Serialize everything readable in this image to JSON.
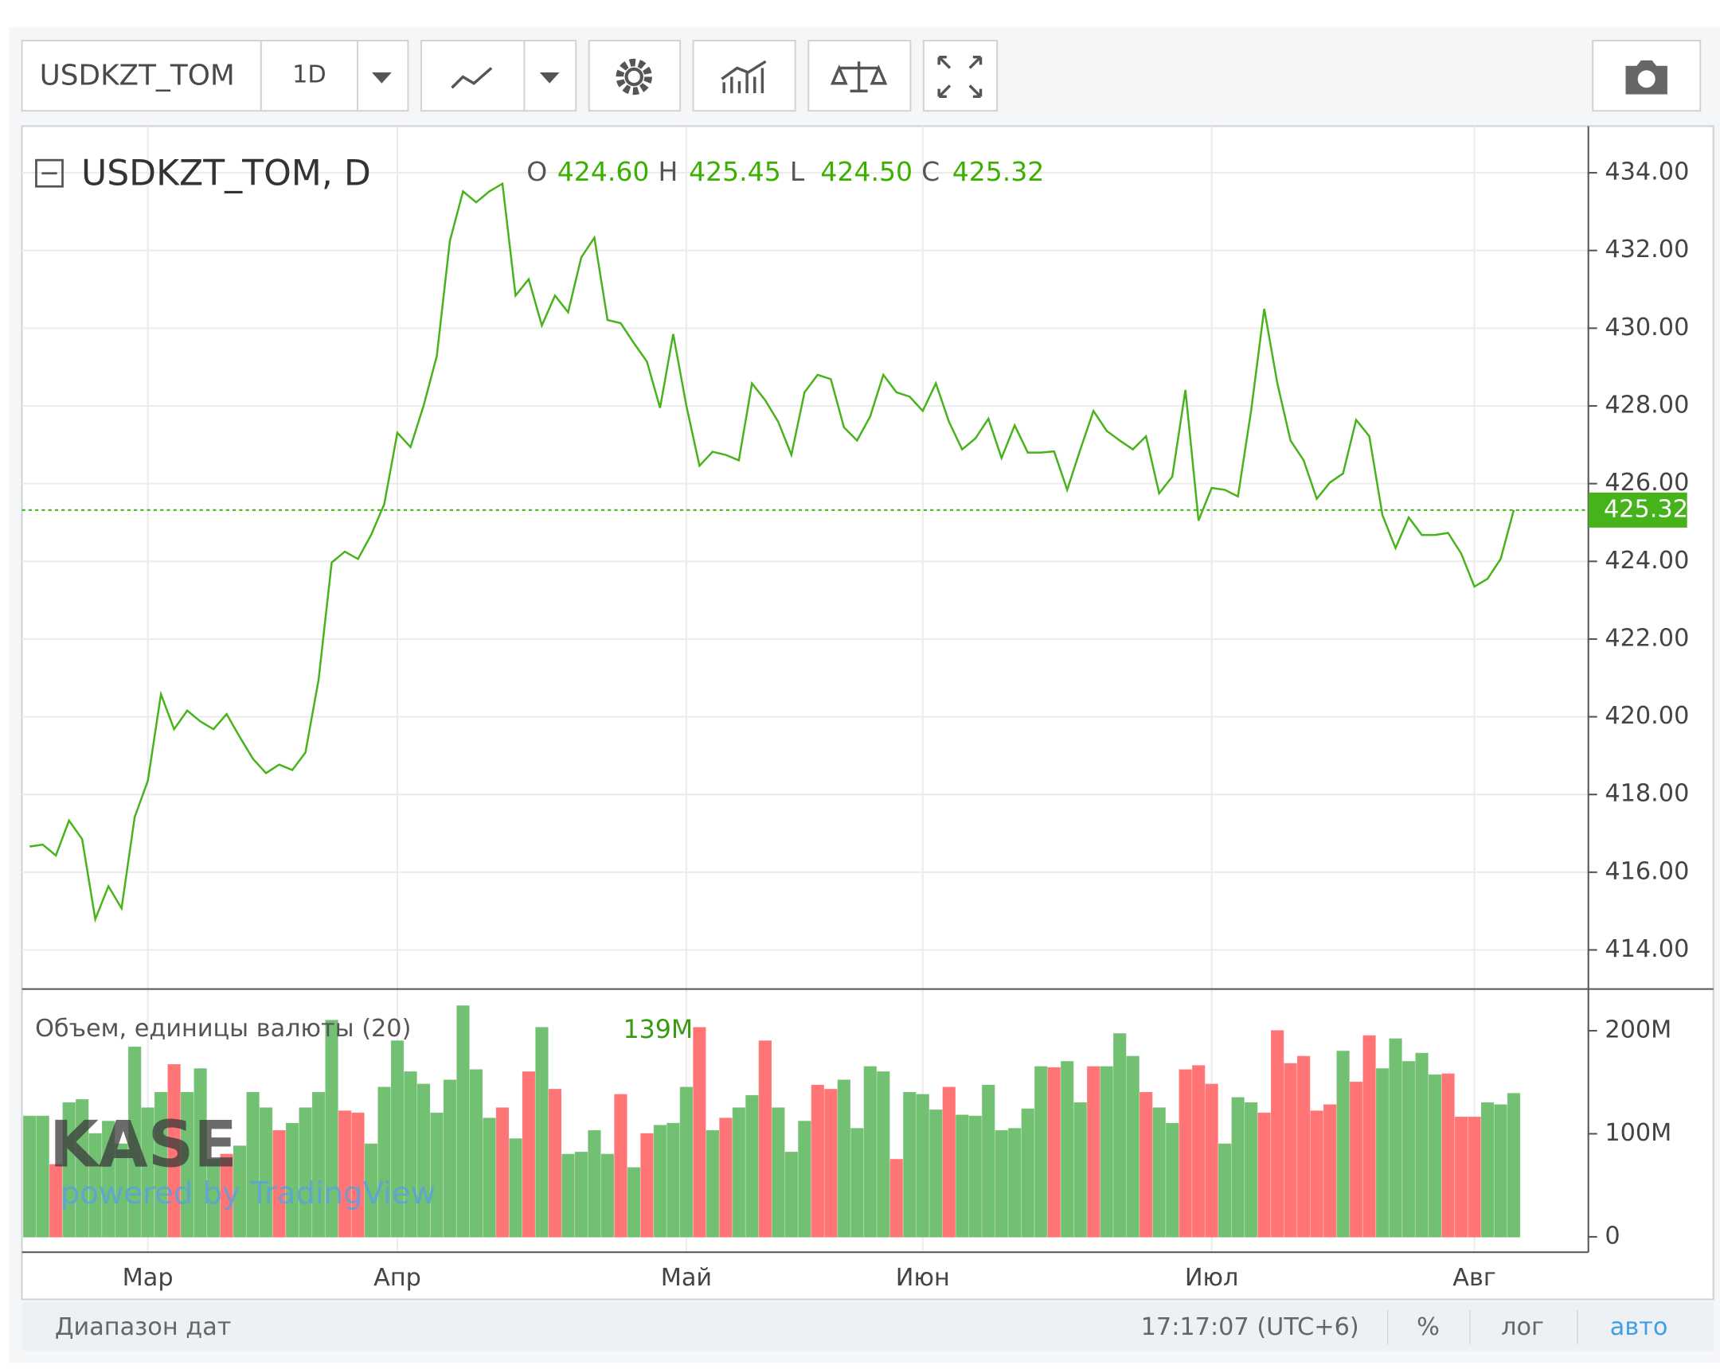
{
  "toolbar": {
    "symbol": "USDKZT_TOM",
    "interval": "1D"
  },
  "legend": {
    "title": "USDKZT_TOM, D",
    "fields": [
      "O",
      "H",
      "L",
      "C"
    ],
    "values": [
      "424.60",
      "425.45",
      "424.50",
      "425.32"
    ]
  },
  "watermark": {
    "logo": "KASE",
    "caption": "powered by TradingView"
  },
  "chart_data": [
    {
      "type": "line",
      "color": "#46b31a",
      "grid": true,
      "categories": [
        null,
        null,
        null,
        null,
        null,
        null,
        null,
        null,
        null,
        "Мар",
        null,
        null,
        null,
        null,
        null,
        null,
        null,
        null,
        null,
        null,
        null,
        null,
        null,
        null,
        null,
        null,
        null,
        null,
        "Апр",
        null,
        null,
        null,
        null,
        null,
        null,
        null,
        null,
        null,
        null,
        null,
        null,
        null,
        null,
        null,
        null,
        null,
        null,
        null,
        null,
        null,
        "Май",
        null,
        null,
        null,
        null,
        null,
        null,
        null,
        null,
        null,
        null,
        null,
        null,
        null,
        null,
        null,
        null,
        null,
        "Июн",
        null,
        null,
        null,
        null,
        null,
        null,
        null,
        null,
        null,
        null,
        null,
        null,
        null,
        null,
        null,
        null,
        null,
        null,
        null,
        null,
        null,
        "Июл",
        null,
        null,
        null,
        null,
        null,
        null,
        null,
        null,
        null,
        null,
        null,
        null,
        null,
        null,
        null,
        null,
        null,
        null,
        null,
        "Авг",
        null,
        null,
        null
      ],
      "values": [
        416.66,
        416.71,
        416.43,
        417.33,
        416.85,
        414.79,
        415.64,
        415.07,
        417.42,
        418.35,
        420.58,
        419.68,
        420.16,
        419.88,
        419.68,
        420.07,
        419.48,
        418.92,
        418.55,
        418.77,
        418.63,
        419.08,
        420.95,
        423.97,
        424.25,
        424.06,
        424.68,
        425.47,
        427.31,
        426.94,
        428.01,
        429.28,
        432.25,
        433.52,
        433.24,
        433.52,
        433.72,
        430.84,
        431.26,
        430.07,
        430.84,
        430.41,
        431.82,
        432.33,
        430.21,
        430.13,
        429.62,
        429.14,
        427.95,
        429.85,
        428.01,
        426.46,
        426.82,
        426.74,
        426.6,
        428.58,
        428.15,
        427.59,
        426.74,
        428.35,
        428.8,
        428.69,
        427.45,
        427.11,
        427.73,
        428.8,
        428.35,
        428.24,
        427.87,
        428.58,
        427.59,
        426.88,
        427.16,
        427.67,
        426.66,
        427.5,
        426.8,
        426.8,
        426.83,
        425.84,
        426.88,
        427.87,
        427.36,
        427.11,
        426.88,
        427.22,
        425.75,
        426.18,
        428.41,
        425.05,
        425.89,
        425.84,
        425.67,
        427.87,
        430.5,
        428.58,
        427.11,
        426.6,
        425.61,
        426.03,
        426.26,
        427.64,
        427.22,
        425.19,
        424.34,
        425.13,
        424.68,
        424.68,
        424.73,
        424.2,
        423.35,
        423.55,
        424.06,
        425.32
      ],
      "ylim": [
        413.05,
        435.2
      ],
      "yticks": [
        {
          "value": 414,
          "label": "414.00"
        },
        {
          "value": 416,
          "label": "416.00"
        },
        {
          "value": 418,
          "label": "418.00"
        },
        {
          "value": 420,
          "label": "420.00"
        },
        {
          "value": 422,
          "label": "422.00"
        },
        {
          "value": 424,
          "label": "424.00"
        },
        {
          "value": 426,
          "label": "426.00"
        },
        {
          "value": 428,
          "label": "428.00"
        },
        {
          "value": 430,
          "label": "430.00"
        },
        {
          "value": 432,
          "label": "432.00"
        },
        {
          "value": 434,
          "label": "434.00"
        }
      ]
    },
    {
      "type": "bar",
      "title": "Объем, единицы валюты (20)",
      "last_value": "139M",
      "grid": false,
      "values": [
        117,
        117,
        70,
        130,
        133,
        100,
        112,
        90,
        184,
        125,
        140,
        167,
        140,
        163,
        75,
        80,
        88,
        140,
        125,
        103,
        110,
        125,
        140,
        210,
        122,
        120,
        90,
        145,
        190,
        160,
        148,
        120,
        152,
        224,
        162,
        115,
        125,
        95,
        160,
        203,
        143,
        80,
        82,
        103,
        80,
        138,
        67,
        100,
        108,
        110,
        145,
        203,
        103,
        115,
        125,
        137,
        190,
        125,
        82,
        112,
        147,
        143,
        152,
        105,
        165,
        160,
        75,
        140,
        138,
        123,
        145,
        118,
        117,
        147,
        103,
        105,
        124,
        165,
        164,
        170,
        130,
        165,
        165,
        197,
        175,
        140,
        125,
        110,
        162,
        166,
        148,
        90,
        135,
        130,
        120,
        200,
        168,
        175,
        122,
        128,
        180,
        150,
        195,
        163,
        192,
        170,
        178,
        157,
        158,
        116,
        116,
        130,
        128,
        139
      ],
      "colors": [
        "#72c072",
        "#72c072",
        "#ff7474",
        "#72c072",
        "#72c072",
        "#72c072",
        "#72c072",
        "#72c072",
        "#72c072",
        "#72c072",
        "#72c072",
        "#ff7474",
        "#72c072",
        "#72c072",
        "#72c072",
        "#ff7474",
        "#72c072",
        "#72c072",
        "#72c072",
        "#ff7474",
        "#72c072",
        "#72c072",
        "#72c072",
        "#72c072",
        "#ff7474",
        "#ff7474",
        "#72c072",
        "#72c072",
        "#72c072",
        "#72c072",
        "#72c072",
        "#72c072",
        "#72c072",
        "#72c072",
        "#72c072",
        "#72c072",
        "#ff7474",
        "#72c072",
        "#ff7474",
        "#72c072",
        "#ff7474",
        "#72c072",
        "#72c072",
        "#72c072",
        "#72c072",
        "#ff7474",
        "#72c072",
        "#ff7474",
        "#72c072",
        "#72c072",
        "#72c072",
        "#ff7474",
        "#72c072",
        "#ff7474",
        "#72c072",
        "#72c072",
        "#ff7474",
        "#72c072",
        "#72c072",
        "#72c072",
        "#ff7474",
        "#ff7474",
        "#72c072",
        "#72c072",
        "#72c072",
        "#72c072",
        "#ff7474",
        "#72c072",
        "#72c072",
        "#72c072",
        "#ff7474",
        "#72c072",
        "#72c072",
        "#72c072",
        "#72c072",
        "#72c072",
        "#72c072",
        "#72c072",
        "#ff7474",
        "#72c072",
        "#72c072",
        "#ff7474",
        "#72c072",
        "#72c072",
        "#72c072",
        "#ff7474",
        "#72c072",
        "#72c072",
        "#ff7474",
        "#ff7474",
        "#ff7474",
        "#72c072",
        "#72c072",
        "#72c072",
        "#ff7474",
        "#ff7474",
        "#ff7474",
        "#ff7474",
        "#ff7474",
        "#ff7474",
        "#72c072",
        "#ff7474",
        "#ff7474",
        "#72c072",
        "#72c072",
        "#72c072",
        "#72c072",
        "#72c072",
        "#ff7474",
        "#ff7474",
        "#ff7474",
        "#72c072",
        "#72c072",
        "#72c072"
      ],
      "ylim": [
        -14.9,
        239.4
      ],
      "yticks": [
        0,
        {
          "value": 100,
          "label": "100M"
        },
        {
          "value": 200,
          "label": "200M"
        }
      ]
    }
  ],
  "footer": {
    "range": "Диапазон дат",
    "time": "17:17:07 (UTC+6)",
    "percent": "%",
    "log": "лог",
    "auto": "авто"
  }
}
